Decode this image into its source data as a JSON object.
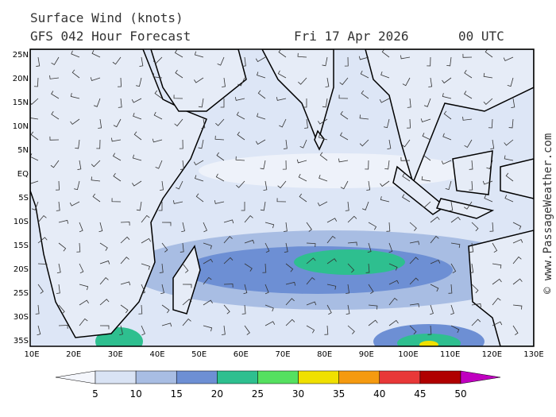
{
  "header": {
    "title": "Surface Wind (knots)",
    "subtitle": "GFS 042 Hour Forecast",
    "date": "Fri 17 Apr 2026",
    "time": "00 UTC"
  },
  "map": {
    "lat_labels": [
      "25N",
      "20N",
      "15N",
      "10N",
      "5N",
      "EQ",
      "5S",
      "10S",
      "15S",
      "20S",
      "25S",
      "30S",
      "35S"
    ],
    "lon_labels": [
      "10E",
      "20E",
      "30E",
      "40E",
      "50E",
      "60E",
      "70E",
      "80E",
      "90E",
      "100E",
      "110E",
      "120E",
      "130E"
    ]
  },
  "colorbar": {
    "labels": [
      5,
      10,
      15,
      20,
      25,
      30,
      35,
      40,
      45,
      50
    ],
    "colors": [
      "#f4f6fc",
      "#d9e3f4",
      "#a8bde3",
      "#6d8fd4",
      "#2ebf8f",
      "#55e060",
      "#f0e000",
      "#f59a10",
      "#e83838",
      "#b00000",
      "#c000c0"
    ]
  },
  "credit": "© www.PassageWeather.com"
}
